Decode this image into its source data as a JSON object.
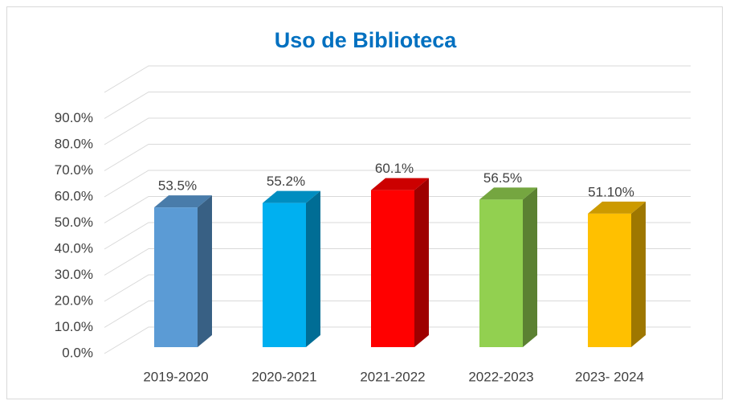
{
  "chart_data": {
    "type": "bar3d",
    "title": "Uso de Biblioteca",
    "categories": [
      "2019-2020",
      "2020-2021",
      "2021-2022",
      "2022-2023",
      "2023- 2024"
    ],
    "values": [
      53.5,
      55.2,
      60.1,
      56.5,
      51.1
    ],
    "value_labels": [
      "53.5%",
      "55.2%",
      "60.1%",
      "56.5%",
      "51.10%"
    ],
    "colors": [
      "#5b9bd5",
      "#00b0f0",
      "#ff0000",
      "#92d050",
      "#ffc000"
    ],
    "ylim": [
      0,
      100
    ],
    "yticks": [
      {
        "value": 0,
        "label": "0.0%"
      },
      {
        "value": 10,
        "label": "10.0%"
      },
      {
        "value": 20,
        "label": "20.0%"
      },
      {
        "value": 30,
        "label": "30.0%"
      },
      {
        "value": 40,
        "label": "40.0%"
      },
      {
        "value": 50,
        "label": "50.0%"
      },
      {
        "value": 60,
        "label": "60.0%"
      },
      {
        "value": 70,
        "label": "70.0%"
      },
      {
        "value": 80,
        "label": "80.0%"
      },
      {
        "value": 90,
        "label": "90.0%"
      }
    ],
    "grid": true
  }
}
